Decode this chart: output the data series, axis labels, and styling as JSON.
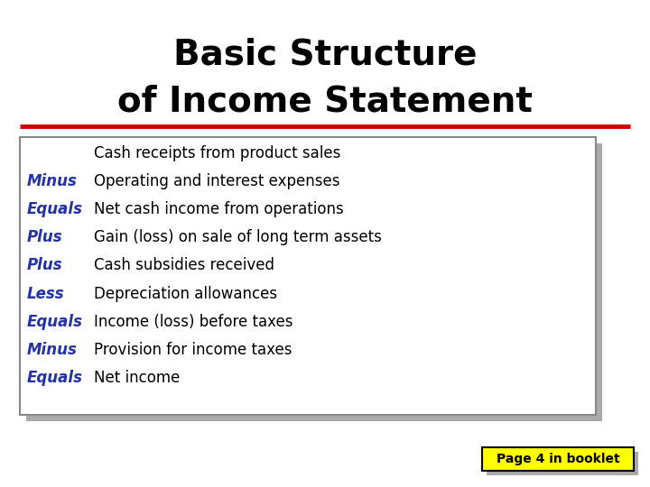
{
  "title_line1": "Basic Structure",
  "title_line2": "of Income Statement",
  "title_fontsize": 28,
  "title_color": "#000000",
  "red_line_color": "#CC0000",
  "rows": [
    {
      "label": "",
      "label_color": "#2233AA",
      "text": "Cash receipts from product sales"
    },
    {
      "label": "Minus",
      "label_color": "#2233AA",
      "text": "Operating and interest expenses"
    },
    {
      "label": "Equals",
      "label_color": "#2233AA",
      "text": "Net cash income from operations"
    },
    {
      "label": "Plus",
      "label_color": "#2233AA",
      "text": "Gain (loss) on sale of long term assets"
    },
    {
      "label": "Plus",
      "label_color": "#2233AA",
      "text": "Cash subsidies received"
    },
    {
      "label": "Less",
      "label_color": "#2233AA",
      "text": "Depreciation allowances"
    },
    {
      "label": "Equals",
      "label_color": "#2233AA",
      "text": "Income (loss) before taxes"
    },
    {
      "label": "Minus",
      "label_color": "#2233AA",
      "text": "Provision for income taxes"
    },
    {
      "label": "Equals",
      "label_color": "#2233AA",
      "text": "Net income"
    }
  ],
  "table_fontsize": 12,
  "box_facecolor": "#FFFFFF",
  "box_edgecolor": "#888888",
  "shadow_color": "#AAAAAA",
  "background_color": "#FFFFFF",
  "badge_text": "Page 4 in booklet",
  "badge_bg": "#FFFF00",
  "badge_border": "#000000"
}
